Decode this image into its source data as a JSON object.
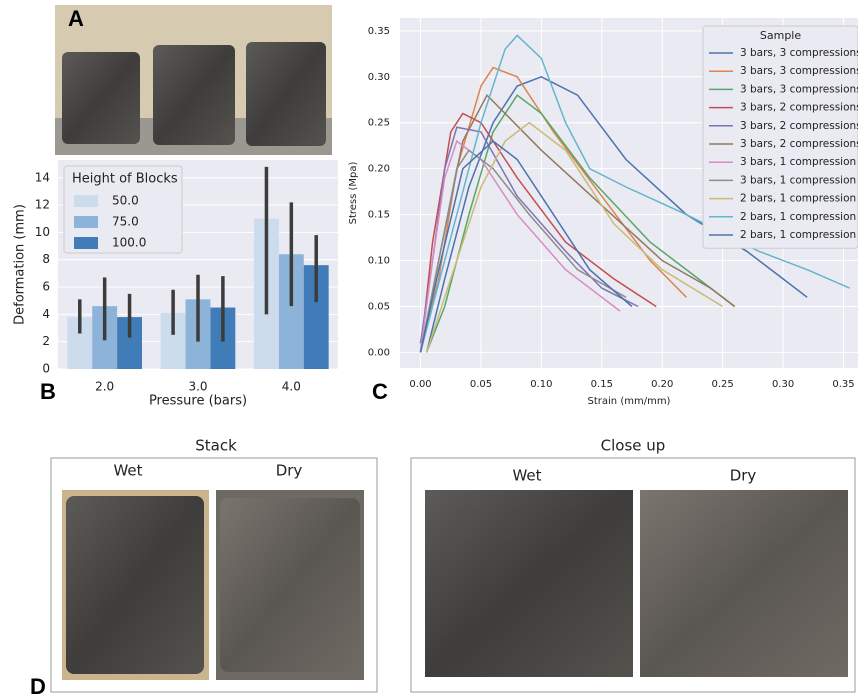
{
  "panels": {
    "a": "A",
    "b": "B",
    "c": "C",
    "d": "D"
  },
  "photos": {
    "stack_title": "Stack",
    "stack_wet": "Wet",
    "stack_dry": "Dry",
    "closeup_title": "Close up",
    "closeup_wet": "Wet",
    "closeup_dry": "Dry"
  },
  "chart_data": [
    {
      "type": "bar",
      "xlabel": "Pressure (bars)",
      "ylabel": "Deformation (mm)",
      "legend_title": "Height of Blocks",
      "legend_loc": "upper left",
      "grid": true,
      "categories": [
        "2.0",
        "3.0",
        "4.0"
      ],
      "ylim": [
        0,
        15.3
      ],
      "yticks": [
        0,
        2,
        4,
        6,
        8,
        10,
        12,
        14
      ],
      "series": [
        {
          "name": "50.0",
          "color": "#cddcec",
          "values": [
            3.8,
            4.1,
            11.0
          ],
          "ci_low": [
            2.6,
            2.5,
            4.0
          ],
          "ci_high": [
            5.1,
            5.8,
            14.8
          ]
        },
        {
          "name": "75.0",
          "color": "#8db4d8",
          "values": [
            4.6,
            5.1,
            8.4
          ],
          "ci_low": [
            2.1,
            2.0,
            4.6
          ],
          "ci_high": [
            6.7,
            6.9,
            12.2
          ]
        },
        {
          "name": "100.0",
          "color": "#3f7cb8",
          "values": [
            3.8,
            4.5,
            7.6
          ],
          "ci_low": [
            2.3,
            2.0,
            4.9
          ],
          "ci_high": [
            5.5,
            6.8,
            9.8
          ]
        }
      ]
    },
    {
      "type": "line",
      "xlabel": "Strain (mm/mm)",
      "ylabel": "Stress (Mpa)",
      "legend_title": "Sample",
      "legend_loc": "upper right",
      "grid": true,
      "xlim": [
        -0.017,
        0.362
      ],
      "ylim": [
        -0.017,
        0.364
      ],
      "xticks": [
        {
          "value": 0,
          "label": "0.00"
        },
        {
          "value": 0.05,
          "label": "0.05"
        },
        {
          "value": 0.1,
          "label": "0.10"
        },
        {
          "value": 0.15,
          "label": "0.15"
        },
        {
          "value": 0.2,
          "label": "0.20"
        },
        {
          "value": 0.25,
          "label": "0.25"
        },
        {
          "value": 0.3,
          "label": "0.30"
        },
        {
          "value": 0.35,
          "label": "0.35"
        }
      ],
      "yticks": [
        {
          "value": 0,
          "label": "0.00"
        },
        {
          "value": 0.05,
          "label": "0.05"
        },
        {
          "value": 0.1,
          "label": "0.10"
        },
        {
          "value": 0.15,
          "label": "0.15"
        },
        {
          "value": 0.2,
          "label": "0.20"
        },
        {
          "value": 0.25,
          "label": "0.25"
        },
        {
          "value": 0.3,
          "label": "0.30"
        },
        {
          "value": 0.35,
          "label": "0.35"
        }
      ],
      "series": [
        {
          "name": "3 bars, 3 compressions",
          "color": "#4c72b0",
          "x": [
            0.005,
            0.02,
            0.04,
            0.06,
            0.08,
            0.1,
            0.13,
            0.17,
            0.22,
            0.27,
            0.3,
            0.32
          ],
          "values": [
            0,
            0.08,
            0.18,
            0.25,
            0.29,
            0.3,
            0.28,
            0.21,
            0.15,
            0.11,
            0.08,
            0.06
          ]
        },
        {
          "name": "3 bars, 3 compressions",
          "color": "#dd8452",
          "x": [
            0,
            0.015,
            0.03,
            0.05,
            0.06,
            0.08,
            0.11,
            0.15,
            0.19,
            0.22
          ],
          "values": [
            0,
            0.08,
            0.2,
            0.29,
            0.31,
            0.3,
            0.24,
            0.17,
            0.1,
            0.06
          ]
        },
        {
          "name": "3 bars, 3 compressions",
          "color": "#55a868",
          "x": [
            0.005,
            0.02,
            0.04,
            0.06,
            0.08,
            0.1,
            0.14,
            0.19,
            0.23,
            0.26
          ],
          "values": [
            0,
            0.05,
            0.15,
            0.24,
            0.28,
            0.26,
            0.19,
            0.12,
            0.08,
            0.05
          ]
        },
        {
          "name": "3 bars, 2 compressions",
          "color": "#c44e52",
          "x": [
            0,
            0.01,
            0.025,
            0.035,
            0.05,
            0.08,
            0.12,
            0.16,
            0.195
          ],
          "values": [
            0,
            0.12,
            0.24,
            0.26,
            0.25,
            0.19,
            0.12,
            0.08,
            0.05
          ]
        },
        {
          "name": "3 bars, 2 compressions",
          "color": "#8172b3",
          "x": [
            0,
            0.01,
            0.02,
            0.03,
            0.05,
            0.08,
            0.12,
            0.15,
            0.18
          ],
          "values": [
            0.01,
            0.1,
            0.2,
            0.245,
            0.24,
            0.17,
            0.11,
            0.07,
            0.05
          ]
        },
        {
          "name": "3 bars, 2 compressions",
          "color": "#937860",
          "x": [
            0,
            0.015,
            0.035,
            0.055,
            0.07,
            0.1,
            0.15,
            0.2,
            0.24,
            0.26
          ],
          "values": [
            0,
            0.1,
            0.23,
            0.28,
            0.26,
            0.22,
            0.16,
            0.1,
            0.07,
            0.05
          ]
        },
        {
          "name": "3 bars, 1 compression",
          "color": "#da8bc3",
          "x": [
            0,
            0.01,
            0.02,
            0.03,
            0.05,
            0.08,
            0.12,
            0.165
          ],
          "values": [
            0,
            0.1,
            0.19,
            0.23,
            0.21,
            0.15,
            0.09,
            0.045
          ]
        },
        {
          "name": "3 bars, 1 compression",
          "color": "#8c8c8c",
          "x": [
            0,
            0.015,
            0.03,
            0.04,
            0.06,
            0.09,
            0.13,
            0.17
          ],
          "values": [
            0,
            0.1,
            0.2,
            0.22,
            0.2,
            0.15,
            0.09,
            0.06
          ]
        },
        {
          "name": "2 bars, 1 compression",
          "color": "#ccb974",
          "x": [
            0.005,
            0.02,
            0.05,
            0.07,
            0.09,
            0.12,
            0.16,
            0.2,
            0.25
          ],
          "values": [
            0,
            0.06,
            0.18,
            0.23,
            0.25,
            0.22,
            0.14,
            0.09,
            0.05
          ]
        },
        {
          "name": "2 bars, 1 compression",
          "color": "#64b5cd",
          "x": [
            0,
            0.02,
            0.05,
            0.07,
            0.08,
            0.1,
            0.12,
            0.14,
            0.17,
            0.22,
            0.28,
            0.32,
            0.355
          ],
          "values": [
            0,
            0.1,
            0.25,
            0.33,
            0.345,
            0.32,
            0.25,
            0.2,
            0.18,
            0.15,
            0.11,
            0.09,
            0.07
          ]
        },
        {
          "name": "2 bars, 1 compression",
          "color": "#4c72b0",
          "x": [
            0,
            0.015,
            0.035,
            0.06,
            0.08,
            0.11,
            0.14,
            0.175
          ],
          "values": [
            0,
            0.09,
            0.2,
            0.23,
            0.21,
            0.15,
            0.09,
            0.05
          ]
        }
      ]
    }
  ]
}
